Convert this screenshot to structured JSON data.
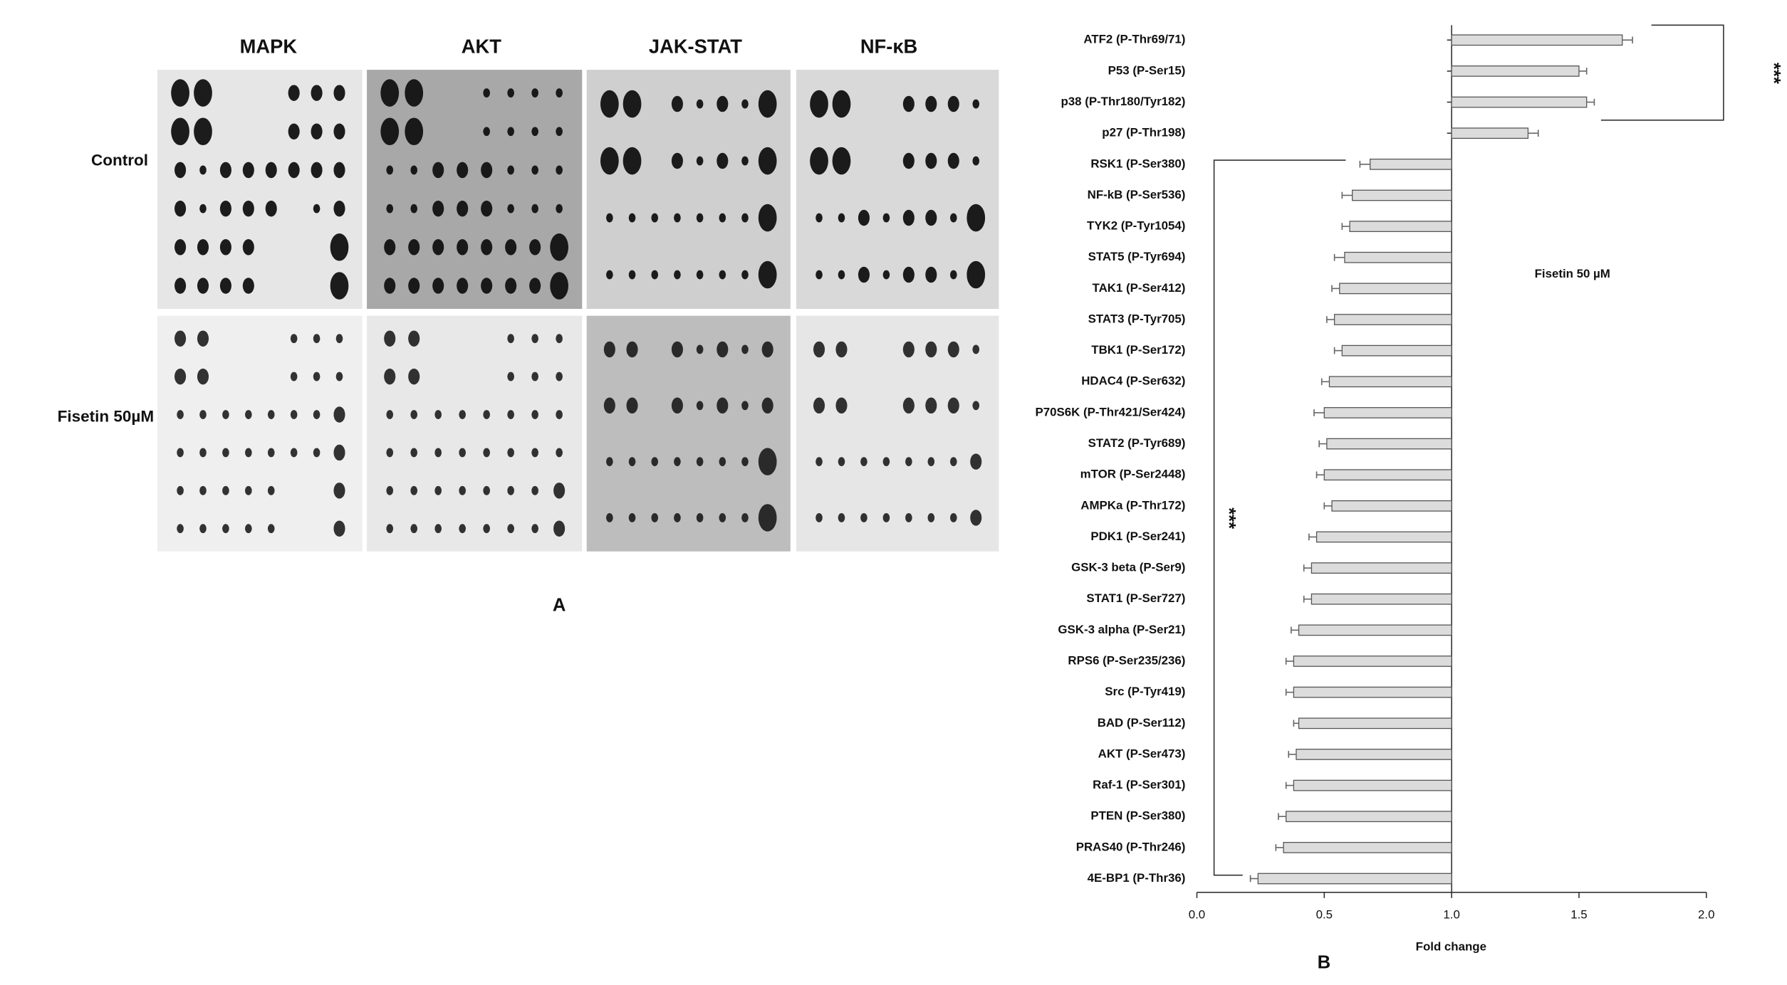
{
  "panel_a": {
    "columns": [
      "MAPK",
      "AKT",
      "JAK-STAT",
      "NF-κB"
    ],
    "rows": [
      "Control",
      "Fisetin 50µM"
    ],
    "label": "A"
  },
  "chart_data": {
    "type": "bar",
    "orientation": "horizontal",
    "baseline": 1,
    "categories": [
      "ATF2 (P-Thr69/71)",
      "P53 (P-Ser15)",
      "p38 (P-Thr180/Tyr182)",
      "p27 (P-Thr198)",
      "RSK1 (P-Ser380)",
      "NF-kB (P-Ser536)",
      "TYK2 (P-Tyr1054)",
      "STAT5 (P-Tyr694)",
      "TAK1 (P-Ser412)",
      "STAT3 (P-Tyr705)",
      "TBK1 (P-Ser172)",
      "HDAC4 (P-Ser632)",
      "P70S6K (P-Thr421/Ser424)",
      "STAT2 (P-Tyr689)",
      "mTOR (P-Ser2448)",
      "AMPKa (P-Thr172)",
      "PDK1 (P-Ser241)",
      "GSK-3 beta (P-Ser9)",
      "STAT1 (P-Ser727)",
      "GSK-3 alpha (P-Ser21)",
      "RPS6 (P-Ser235/236)",
      "Src (P-Tyr419)",
      "BAD (P-Ser112)",
      "AKT (P-Ser473)",
      "Raf-1 (P-Ser301)",
      "PTEN (P-Ser380)",
      "PRAS40 (P-Thr246)",
      "4E-BP1 (P-Thr36)"
    ],
    "values": [
      1.67,
      1.5,
      1.53,
      1.3,
      0.68,
      0.61,
      0.6,
      0.58,
      0.56,
      0.54,
      0.57,
      0.52,
      0.5,
      0.51,
      0.5,
      0.53,
      0.47,
      0.45,
      0.45,
      0.4,
      0.38,
      0.38,
      0.4,
      0.39,
      0.38,
      0.35,
      0.34,
      0.24
    ],
    "errors": [
      0.04,
      0.03,
      0.03,
      0.04,
      0.04,
      0.04,
      0.03,
      0.04,
      0.03,
      0.03,
      0.03,
      0.03,
      0.04,
      0.03,
      0.03,
      0.03,
      0.03,
      0.03,
      0.03,
      0.03,
      0.03,
      0.03,
      0.02,
      0.03,
      0.03,
      0.03,
      0.03,
      0.03
    ],
    "color": "#dcdcdc",
    "edgecolor": "#555555",
    "xlim": [
      0,
      2
    ],
    "xticks": [
      {
        "value": 0,
        "label": "0.0"
      },
      0.5,
      {
        "value": 1,
        "label": "1.0"
      },
      1.5,
      {
        "value": 2,
        "label": "2.0"
      }
    ],
    "xlabel": "Fold change",
    "annotation": "Fisetin 50 µM",
    "significance": [
      "***",
      "***"
    ],
    "panel_label": "B"
  }
}
